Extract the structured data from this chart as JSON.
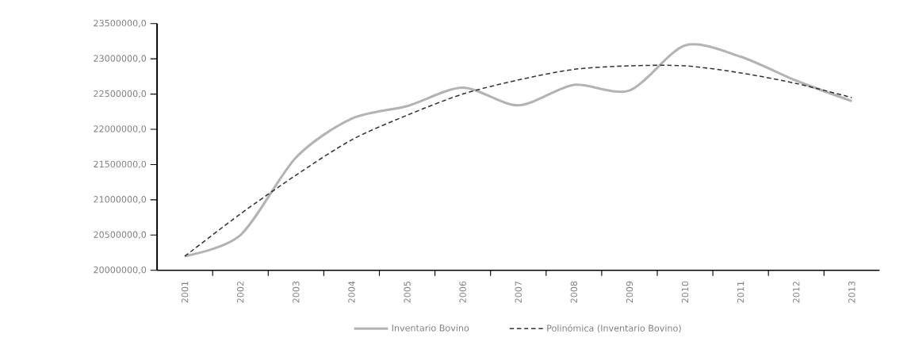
{
  "chart_data": {
    "type": "line",
    "categories": [
      "2001",
      "2002",
      "2003",
      "2004",
      "2005",
      "2006",
      "2007",
      "2008",
      "2009",
      "2010",
      "2011",
      "2012",
      "2013"
    ],
    "series": [
      {
        "name": "Inventario Bovino",
        "color": "#b3b3b3",
        "line_style": "solid",
        "values": [
          20200000,
          20500000,
          21600000,
          22150000,
          22330000,
          22590000,
          22340000,
          22630000,
          22550000,
          23190000,
          23030000,
          22690000,
          22400000
        ]
      },
      {
        "name": "Polinómica (Inventario Bovino)",
        "color": "#333333",
        "line_style": "dashed",
        "values": [
          20200000,
          20800000,
          21350000,
          21850000,
          22200000,
          22500000,
          22700000,
          22850000,
          22900000,
          22900000,
          22800000,
          22650000,
          22450000
        ]
      }
    ],
    "ylim": [
      20000000,
      23500000
    ],
    "yticks": [
      {
        "value": 20000000,
        "label": "20000000,0"
      },
      {
        "value": 20500000,
        "label": "20500000,0"
      },
      {
        "value": 21000000,
        "label": "21000000,0"
      },
      {
        "value": 21500000,
        "label": "21500000,0"
      },
      {
        "value": 22000000,
        "label": "22000000,0"
      },
      {
        "value": 22500000,
        "label": "22500000,0"
      },
      {
        "value": 23000000,
        "label": "23000000,0"
      },
      {
        "value": 23500000,
        "label": "23500000,0"
      }
    ],
    "legend": "bottom"
  }
}
